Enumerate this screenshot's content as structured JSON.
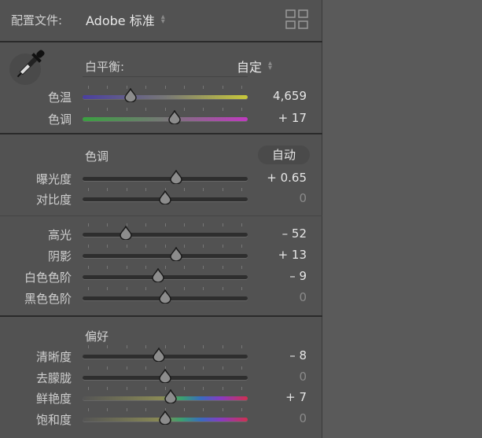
{
  "profile": {
    "label": "配置文件:",
    "value": "Adobe 标准",
    "grid_icon": "grid-icon"
  },
  "white_balance": {
    "label": "白平衡:",
    "value": "自定",
    "eyedropper_icon": "eyedropper-icon"
  },
  "tone": {
    "heading": "色调",
    "auto_button": "自动"
  },
  "presence": {
    "heading": "偏好"
  },
  "sliders": [
    {
      "key": "temp",
      "label": "色温",
      "value": "4,659",
      "position": 0.29,
      "track": "temp"
    },
    {
      "key": "tint",
      "label": "色调",
      "value": "+ 17",
      "position": 0.555,
      "track": "tint"
    },
    {
      "key": "exposure",
      "label": "曝光度",
      "value": "+ 0.65",
      "position": 0.565,
      "track": "plain"
    },
    {
      "key": "contrast",
      "label": "对比度",
      "value": "0",
      "position": 0.5,
      "track": "plain"
    },
    {
      "key": "highlights",
      "label": "高光",
      "value": "– 52",
      "position": 0.26,
      "track": "plain"
    },
    {
      "key": "shadows",
      "label": "阴影",
      "value": "+ 13",
      "position": 0.565,
      "track": "plain"
    },
    {
      "key": "whites",
      "label": "白色色阶",
      "value": "– 9",
      "position": 0.455,
      "track": "plain"
    },
    {
      "key": "blacks",
      "label": "黑色色阶",
      "value": "0",
      "position": 0.5,
      "track": "plain"
    },
    {
      "key": "clarity",
      "label": "清晰度",
      "value": "– 8",
      "position": 0.46,
      "track": "plain"
    },
    {
      "key": "dehaze",
      "label": "去朦胧",
      "value": "0",
      "position": 0.5,
      "track": "plain"
    },
    {
      "key": "vibrance",
      "label": "鲜艳度",
      "value": "+ 7",
      "position": 0.535,
      "track": "color"
    },
    {
      "key": "saturation",
      "label": "饱和度",
      "value": "0",
      "position": 0.5,
      "track": "color"
    }
  ],
  "colors": {
    "panel": "#525252",
    "background": "#5a5a5a",
    "temp_start": "#4a3fa0",
    "temp_end": "#c8c83a",
    "tint_start": "#3aa040",
    "tint_end": "#c03ac0"
  }
}
